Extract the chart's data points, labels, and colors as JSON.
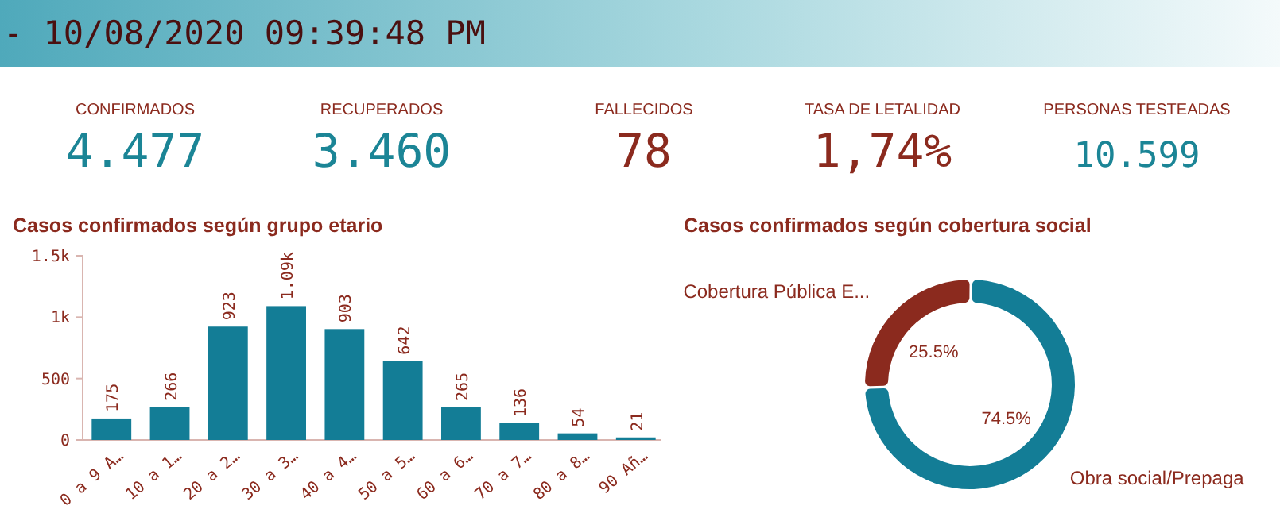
{
  "chart_data": [
    {
      "type": "other",
      "title": "- 10/08/2020 09:39:48 PM",
      "annotations": [
        "CONFIRMADOS",
        "4.477",
        "RECUPERADOS",
        "3.460",
        "FALLECIDOS",
        "78",
        "TASA DE LETALIDAD",
        "1,74%",
        "PERSONAS TESTEADAS",
        "10.599"
      ]
    },
    {
      "type": "bar",
      "title": "Casos confirmados según grupo etario",
      "categories": [
        "0 a 9 A…",
        "10 a 1…",
        "20 a 2…",
        "30 a 3…",
        "40 a 4…",
        "50 a 5…",
        "60 a 6…",
        "70 a 7…",
        "80 a 8…",
        "90 Añ…"
      ],
      "values": [
        175,
        266,
        923,
        1090,
        903,
        642,
        265,
        136,
        54,
        21
      ],
      "value_labels": [
        "175",
        "266",
        "923",
        "1.09k",
        "903",
        "642",
        "265",
        "136",
        "54",
        "21"
      ],
      "color": "#137d96",
      "ylim": [
        0,
        1500
      ],
      "yticks": [
        0,
        500,
        {
          "value": 1000,
          "label": "1k"
        },
        {
          "value": 1500,
          "label": "1.5k"
        }
      ],
      "grid": false
    },
    {
      "type": "donut",
      "title": "Casos confirmados según cobertura social",
      "categories": [
        "Cobertura Pública E...",
        "Obra social/Prepaga"
      ],
      "values": [
        25.5,
        74.5
      ],
      "colors": [
        "#8b2a1e",
        "#137d96"
      ],
      "value_labels": [
        "25.5%",
        "74.5%"
      ]
    }
  ]
}
